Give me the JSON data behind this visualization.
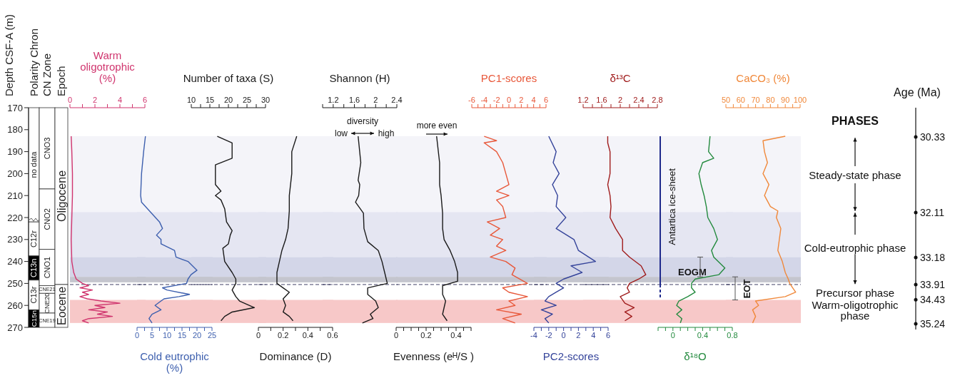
{
  "chart_data": [
    {
      "type": "other",
      "annotations": [
        "Polarity Chron",
        "CN Zone",
        "Epoch",
        "no data",
        "C12r",
        "C13n",
        "C13r",
        "C15n",
        "CNO3",
        "CNO2",
        "CNO1",
        "CNE21",
        "CNE20",
        "CNE19",
        "Oligocene",
        "Eocene"
      ]
    },
    {
      "type": "line",
      "xlabel": "Warm oligotrophic (%)",
      "xlim": [
        0,
        6
      ],
      "xticks": [
        0,
        {
          "value": 1,
          "label": null
        },
        2,
        {
          "value": 3,
          "label": null
        },
        4,
        {
          "value": 5,
          "label": null
        },
        6
      ],
      "ylabel": "Depth CSF-A (m)",
      "ylim": [
        270,
        170
      ],
      "yticks": [
        170,
        180,
        190,
        200,
        210,
        220,
        230,
        240,
        250,
        260,
        270
      ],
      "series": [
        {
          "color": "#d0356e",
          "x": [
            0.1,
            0.15,
            0.2,
            0.2,
            0.15,
            0.1,
            0.15,
            0.3,
            0.5,
            1.0,
            1.5,
            0.8,
            1.8,
            1.0,
            1.5,
            0.8,
            1.4,
            2.5,
            4.0,
            2.0,
            2.8,
            1.5,
            3.0,
            2.2,
            3.4,
            1.5,
            1.0,
            1.5
          ],
          "values": [
            183,
            190,
            200,
            210,
            220,
            230,
            240,
            245,
            248,
            250,
            251,
            252,
            253,
            254,
            255,
            256,
            257,
            258,
            259,
            260,
            261,
            262,
            263,
            264,
            265,
            266,
            267,
            268
          ]
        }
      ],
      "bands": [
        {
          "axis": "y",
          "from": 183,
          "to": 217.5,
          "color": "#f4f4f9"
        },
        {
          "axis": "y",
          "from": 217.5,
          "to": 238,
          "color": "#e5e6f2"
        },
        {
          "axis": "y",
          "from": 238,
          "to": 247,
          "color": "#d3d6e8"
        },
        {
          "axis": "y",
          "from": 247,
          "to": 249.5,
          "color": "#c4c5ce"
        },
        {
          "axis": "y",
          "from": 257.5,
          "to": 268,
          "color": "#f7c8c8"
        }
      ],
      "ref_lines": [
        {
          "axis": "y",
          "value": 250.5,
          "line_style": "dashed",
          "color": "#2b2b55"
        }
      ]
    },
    {
      "type": "line",
      "xlabel": "Cold eutrophic (%)",
      "xlim": [
        0,
        25
      ],
      "xticks": [
        0,
        {
          "value": 2.5,
          "label": null
        },
        5,
        {
          "value": 7.5,
          "label": null
        },
        10,
        {
          "value": 12.5,
          "label": null
        },
        15,
        {
          "value": 17.5,
          "label": null
        },
        20,
        {
          "value": 22.5,
          "label": null
        },
        25
      ],
      "ylim": [
        270,
        170
      ],
      "tick_labels": "x",
      "series": [
        {
          "color": "#3d5fae",
          "x": [
            2.8,
            2.2,
            1.5,
            1.2,
            1.5,
            7.5,
            8.5,
            6.5,
            8,
            8,
            12.5,
            13,
            17,
            20,
            18,
            17,
            16.5,
            8.5,
            10,
            17.5,
            14,
            9,
            8,
            6,
            8,
            5,
            4,
            5
          ],
          "values": [
            183,
            190,
            200,
            210,
            213,
            222,
            225,
            228,
            230,
            232,
            235,
            238,
            240,
            244,
            246,
            248,
            250,
            252,
            253,
            255,
            256,
            257,
            258,
            260,
            262,
            264,
            266,
            268
          ]
        }
      ],
      "bands": [
        {
          "axis": "y",
          "from": 183,
          "to": 217.5,
          "color": "#f4f4f9"
        },
        {
          "axis": "y",
          "from": 217.5,
          "to": 238,
          "color": "#e5e6f2"
        },
        {
          "axis": "y",
          "from": 238,
          "to": 247,
          "color": "#d3d6e8"
        },
        {
          "axis": "y",
          "from": 247,
          "to": 249.5,
          "color": "#c4c5ce"
        },
        {
          "axis": "y",
          "from": 257.5,
          "to": 268,
          "color": "#f7c8c8"
        }
      ],
      "ref_lines": [
        {
          "axis": "y",
          "value": 250.5,
          "line_style": "dashed",
          "color": "#2b2b55"
        }
      ]
    },
    {
      "type": "line",
      "xlabel": "Number of taxa (S)",
      "xlim": [
        10,
        30
      ],
      "xticks": [
        10,
        {
          "value": 12.5,
          "label": null
        },
        15,
        {
          "value": 17.5,
          "label": null
        },
        20,
        {
          "value": 22.5,
          "label": null
        },
        25,
        {
          "value": 27.5,
          "label": null
        },
        30
      ],
      "ylim": [
        270,
        170
      ],
      "tick_labels": "x",
      "series": [
        {
          "color": "#1a1a1a",
          "x": [
            17,
            21,
            21,
            16.5,
            16.5,
            18,
            16.5,
            18,
            19,
            19.5,
            21,
            20.5,
            20,
            18.5,
            19,
            21,
            22,
            22,
            21,
            22,
            23,
            27,
            21,
            19,
            18
          ],
          "values": [
            183,
            186,
            193,
            196,
            205,
            208,
            210,
            212,
            216,
            222,
            226,
            228,
            232,
            234,
            240,
            245,
            248,
            250,
            253,
            256,
            258,
            261,
            263,
            265,
            267
          ]
        }
      ],
      "bands": [
        {
          "axis": "y",
          "from": 183,
          "to": 217.5,
          "color": "#f4f4f9"
        },
        {
          "axis": "y",
          "from": 217.5,
          "to": 238,
          "color": "#e5e6f2"
        },
        {
          "axis": "y",
          "from": 238,
          "to": 247,
          "color": "#d3d6e8"
        },
        {
          "axis": "y",
          "from": 247,
          "to": 249.5,
          "color": "#c4c5ce"
        },
        {
          "axis": "y",
          "from": 257.5,
          "to": 268,
          "color": "#f7c8c8"
        }
      ],
      "ref_lines": [
        {
          "axis": "y",
          "value": 250.5,
          "line_style": "dashed",
          "color": "#2b2b55"
        }
      ]
    },
    {
      "type": "line",
      "xlabel": "Dominance (D)",
      "xlim": [
        0,
        0.6
      ],
      "xticks": [
        0,
        {
          "value": 0.1,
          "label": null
        },
        0.2,
        {
          "value": 0.3,
          "label": null
        },
        0.4,
        {
          "value": 0.5,
          "label": null
        },
        0.6
      ],
      "ylim": [
        270,
        170
      ],
      "tick_labels": "x",
      "series": [
        {
          "color": "#1a1a1a",
          "x": [
            0.31,
            0.27,
            0.27,
            0.25,
            0.25,
            0.24,
            0.22,
            0.19,
            0.17,
            0.15,
            0.15,
            0.15,
            0.2,
            0.25,
            0.2,
            0.22,
            0.2,
            0.25,
            0.28
          ],
          "values": [
            183,
            190,
            200,
            210,
            217,
            225,
            230,
            235,
            240,
            245,
            248,
            250,
            252,
            254,
            257,
            260,
            263,
            265,
            267
          ]
        }
      ],
      "bands": [
        {
          "axis": "y",
          "from": 183,
          "to": 217.5,
          "color": "#f4f4f9"
        },
        {
          "axis": "y",
          "from": 217.5,
          "to": 238,
          "color": "#e5e6f2"
        },
        {
          "axis": "y",
          "from": 238,
          "to": 247,
          "color": "#d3d6e8"
        },
        {
          "axis": "y",
          "from": 247,
          "to": 249.5,
          "color": "#c4c5ce"
        },
        {
          "axis": "y",
          "from": 257.5,
          "to": 268,
          "color": "#f7c8c8"
        }
      ],
      "ref_lines": [
        {
          "axis": "y",
          "value": 250.5,
          "line_style": "dashed",
          "color": "#2b2b55"
        }
      ]
    },
    {
      "type": "line",
      "xlabel": "Shannon (H)",
      "xlim": [
        1,
        2.4
      ],
      "xticks": [
        {
          "value": 1,
          "label": null
        },
        1.2,
        {
          "value": 1.4,
          "label": null
        },
        1.6,
        {
          "value": 1.8,
          "label": null
        },
        2,
        {
          "value": 2.2,
          "label": null
        },
        2.4
      ],
      "ylim": [
        270,
        170
      ],
      "tick_labels": "x",
      "annotations": [
        "diversity",
        "low",
        "high"
      ],
      "series": [
        {
          "color": "#1a1a1a",
          "x": [
            1.67,
            1.72,
            1.67,
            1.7,
            1.68,
            1.62,
            1.77,
            1.78,
            1.85,
            2.05,
            2.12,
            2.17,
            2.2,
            2.22,
            1.85,
            1.85,
            2.0,
            2.05,
            1.9,
            1.95,
            1.75
          ],
          "values": [
            183,
            195,
            203,
            205,
            210,
            213,
            218,
            225,
            231,
            235,
            240,
            245,
            248,
            250,
            252,
            255,
            258,
            261,
            264,
            266,
            268
          ]
        }
      ],
      "bands": [
        {
          "axis": "y",
          "from": 183,
          "to": 217.5,
          "color": "#f4f4f9"
        },
        {
          "axis": "y",
          "from": 217.5,
          "to": 238,
          "color": "#e5e6f2"
        },
        {
          "axis": "y",
          "from": 238,
          "to": 247,
          "color": "#d3d6e8"
        },
        {
          "axis": "y",
          "from": 247,
          "to": 249.5,
          "color": "#c4c5ce"
        },
        {
          "axis": "y",
          "from": 257.5,
          "to": 268,
          "color": "#f7c8c8"
        }
      ],
      "ref_lines": [
        {
          "axis": "y",
          "value": 250.5,
          "line_style": "dashed",
          "color": "#2b2b55"
        }
      ]
    },
    {
      "type": "line",
      "xlabel": "Evenness (eᴴ/S )",
      "xlim": [
        0,
        0.5
      ],
      "xticks": [
        0,
        {
          "value": 0.05,
          "label": null
        },
        {
          "value": 0.1,
          "label": null
        },
        {
          "value": 0.15,
          "label": null
        },
        0.2,
        {
          "value": 0.25,
          "label": null
        },
        {
          "value": 0.3,
          "label": null
        },
        {
          "value": 0.35,
          "label": null
        },
        0.4,
        {
          "value": 0.45,
          "label": null
        },
        {
          "value": 0.5,
          "label": null
        }
      ],
      "ylim": [
        270,
        170
      ],
      "tick_labels": "x",
      "annotations": [
        "more even"
      ],
      "series": [
        {
          "color": "#1a1a1a",
          "x": [
            0.27,
            0.29,
            0.29,
            0.3,
            0.31,
            0.31,
            0.32,
            0.36,
            0.39,
            0.41,
            0.41,
            0.31,
            0.31,
            0.33,
            0.32,
            0.31,
            0.34
          ],
          "values": [
            183,
            195,
            205,
            210,
            218,
            225,
            230,
            235,
            240,
            245,
            249,
            251,
            255,
            258,
            261,
            264,
            267
          ]
        }
      ],
      "bands": [
        {
          "axis": "y",
          "from": 183,
          "to": 217.5,
          "color": "#f4f4f9"
        },
        {
          "axis": "y",
          "from": 217.5,
          "to": 238,
          "color": "#e5e6f2"
        },
        {
          "axis": "y",
          "from": 238,
          "to": 247,
          "color": "#d3d6e8"
        },
        {
          "axis": "y",
          "from": 247,
          "to": 249.5,
          "color": "#c4c5ce"
        },
        {
          "axis": "y",
          "from": 257.5,
          "to": 268,
          "color": "#f7c8c8"
        }
      ],
      "ref_lines": [
        {
          "axis": "y",
          "value": 250.5,
          "line_style": "dashed",
          "color": "#2b2b55"
        }
      ]
    },
    {
      "type": "line",
      "xlabel": "PC1-scores",
      "xlim": [
        -6,
        6
      ],
      "xticks": [
        -6,
        {
          "value": -5,
          "label": null
        },
        -4,
        {
          "value": -3,
          "label": null
        },
        -2,
        {
          "value": -1,
          "label": null
        },
        0,
        {
          "value": 1,
          "label": null
        },
        2,
        {
          "value": 3,
          "label": null
        },
        4,
        {
          "value": 5,
          "label": null
        },
        6
      ],
      "ylim": [
        270,
        170
      ],
      "tick_labels": "x",
      "series": [
        {
          "color": "#e8583a",
          "x": [
            -4,
            -2,
            -4,
            -2,
            -1,
            -0.5,
            0,
            -2,
            0,
            -2,
            -1,
            -0.5,
            -3.5,
            -1.5,
            -3,
            -1,
            -2,
            -0.5,
            -3,
            -0.5,
            1,
            0.5,
            3,
            -1,
            0,
            3,
            0,
            1,
            -2,
            2,
            -1,
            1
          ],
          "values": [
            183,
            185,
            186,
            190,
            195,
            200,
            205,
            208,
            210,
            212,
            215,
            220,
            222,
            225,
            228,
            230,
            233,
            235,
            238,
            240,
            243,
            246,
            250,
            252,
            254,
            256,
            258,
            260,
            262,
            264,
            266,
            268
          ]
        }
      ],
      "bands": [
        {
          "axis": "y",
          "from": 183,
          "to": 217.5,
          "color": "#f4f4f9"
        },
        {
          "axis": "y",
          "from": 217.5,
          "to": 238,
          "color": "#e5e6f2"
        },
        {
          "axis": "y",
          "from": 238,
          "to": 247,
          "color": "#d3d6e8"
        },
        {
          "axis": "y",
          "from": 247,
          "to": 249.5,
          "color": "#c4c5ce"
        },
        {
          "axis": "y",
          "from": 257.5,
          "to": 268,
          "color": "#f7c8c8"
        }
      ],
      "ref_lines": [
        {
          "axis": "y",
          "value": 250.5,
          "line_style": "dashed",
          "color": "#2b2b55"
        }
      ]
    },
    {
      "type": "line",
      "xlabel": "PC2-scores",
      "xlim": [
        -4,
        6
      ],
      "xticks": [
        -4,
        {
          "value": -3,
          "label": null
        },
        -2,
        {
          "value": -1,
          "label": null
        },
        0,
        {
          "value": 1,
          "label": null
        },
        2,
        {
          "value": 3,
          "label": null
        },
        4,
        {
          "value": 5,
          "label": null
        },
        6
      ],
      "ylim": [
        270,
        170
      ],
      "tick_labels": "x",
      "series": [
        {
          "color": "#34439a",
          "x": [
            -2,
            -1,
            -1.4,
            -0.6,
            -1.5,
            -0.8,
            -1,
            0.3,
            -1,
            1.4,
            2,
            4.3,
            1,
            2.5,
            0,
            -1,
            0,
            -1,
            -2,
            -2.5,
            -1,
            -3,
            -1.5,
            -2.5,
            -2
          ],
          "values": [
            183,
            190,
            195,
            200,
            205,
            210,
            215,
            220,
            225,
            230,
            235,
            240,
            242,
            245,
            248,
            250,
            252,
            254,
            256,
            258,
            260,
            262,
            264,
            266,
            268
          ]
        }
      ],
      "bands": [
        {
          "axis": "y",
          "from": 183,
          "to": 217.5,
          "color": "#f4f4f9"
        },
        {
          "axis": "y",
          "from": 217.5,
          "to": 238,
          "color": "#e5e6f2"
        },
        {
          "axis": "y",
          "from": 238,
          "to": 247,
          "color": "#d3d6e8"
        },
        {
          "axis": "y",
          "from": 247,
          "to": 249.5,
          "color": "#c4c5ce"
        },
        {
          "axis": "y",
          "from": 257.5,
          "to": 268,
          "color": "#f7c8c8"
        }
      ],
      "ref_lines": [
        {
          "axis": "y",
          "value": 250.5,
          "line_style": "dashed",
          "color": "#2b2b55"
        }
      ]
    },
    {
      "type": "line",
      "xlabel": "δ¹³C",
      "xlim": [
        1.2,
        2.8
      ],
      "xticks": [
        1.2,
        {
          "value": 1.4,
          "label": null
        },
        1.6,
        {
          "value": 1.8,
          "label": null
        },
        2,
        {
          "value": 2.2,
          "label": null
        },
        2.4,
        {
          "value": 2.6,
          "label": null
        },
        2.8
      ],
      "ylim": [
        270,
        170
      ],
      "tick_labels": "x",
      "series": [
        {
          "color": "#a01c1c",
          "x": [
            1.73,
            1.73,
            1.78,
            1.78,
            1.73,
            1.78,
            1.8,
            1.78,
            1.9,
            2.05,
            2.05,
            2.2,
            2.45,
            2.55,
            2.4,
            2.2,
            2.15,
            2.2,
            2.0,
            2.1,
            2.3,
            2.1,
            2.25,
            2.1
          ],
          "values": [
            183,
            186,
            190,
            200,
            205,
            210,
            215,
            220,
            225,
            230,
            235,
            238,
            242,
            246,
            248,
            250,
            252,
            254,
            256,
            259,
            261,
            263,
            265,
            267
          ]
        }
      ],
      "bands": [
        {
          "axis": "y",
          "from": 183,
          "to": 217.5,
          "color": "#f4f4f9"
        },
        {
          "axis": "y",
          "from": 217.5,
          "to": 238,
          "color": "#e5e6f2"
        },
        {
          "axis": "y",
          "from": 238,
          "to": 247,
          "color": "#d3d6e8"
        },
        {
          "axis": "y",
          "from": 247,
          "to": 249.5,
          "color": "#c4c5ce"
        },
        {
          "axis": "y",
          "from": 257.5,
          "to": 268,
          "color": "#f7c8c8"
        }
      ],
      "ref_lines": [
        {
          "axis": "y",
          "value": 250.5,
          "line_style": "dashed",
          "color": "#2b2b55"
        }
      ]
    },
    {
      "type": "line",
      "xlabel": "δ¹⁸O",
      "xlim": [
        -0.2,
        0.8
      ],
      "xticks": [
        {
          "value": -0.2,
          "label": null
        },
        {
          "value": -0.1,
          "label": null
        },
        0,
        {
          "value": 0.1,
          "label": null
        },
        {
          "value": 0.2,
          "label": null
        },
        {
          "value": 0.3,
          "label": null
        },
        0.4,
        {
          "value": 0.5,
          "label": null
        },
        {
          "value": 0.6,
          "label": null
        },
        {
          "value": 0.7,
          "label": null
        },
        0.8
      ],
      "ylim": [
        270,
        170
      ],
      "tick_labels": "x",
      "annotations": [
        "Antartica ice-sheet",
        "EOGM",
        "EOT"
      ],
      "series": [
        {
          "color": "#238a3e",
          "x": [
            0.5,
            0.48,
            0.55,
            0.4,
            0.35,
            0.38,
            0.42,
            0.45,
            0.47,
            0.55,
            0.6,
            0.52,
            0.55,
            0.7,
            0.62,
            0.3,
            0.25,
            0.25,
            0.3,
            0.2,
            0.08,
            0.05,
            0.12,
            0.05,
            0.12,
            0.1
          ],
          "values": [
            183,
            190,
            193,
            195,
            200,
            205,
            210,
            215,
            220,
            225,
            230,
            235,
            238,
            243,
            246,
            248,
            250,
            252,
            254,
            256,
            258,
            260,
            262,
            264,
            266,
            268
          ]
        }
      ],
      "bands": [
        {
          "axis": "y",
          "from": 183,
          "to": 217.5,
          "color": "#f4f4f9"
        },
        {
          "axis": "y",
          "from": 217.5,
          "to": 238,
          "color": "#e5e6f2"
        },
        {
          "axis": "y",
          "from": 238,
          "to": 247,
          "color": "#d3d6e8"
        },
        {
          "axis": "y",
          "from": 247,
          "to": 249.5,
          "color": "#c4c5ce"
        },
        {
          "axis": "y",
          "from": 257.5,
          "to": 268,
          "color": "#f7c8c8"
        }
      ],
      "ref_lines": [
        {
          "axis": "y",
          "value": 250.5,
          "line_style": "dashed",
          "color": "#2b2b55"
        }
      ]
    },
    {
      "type": "line",
      "xlabel": "CaCO₃ (%)",
      "xlim": [
        50,
        100
      ],
      "xticks": [
        50,
        {
          "value": 55,
          "label": null
        },
        60,
        {
          "value": 65,
          "label": null
        },
        70,
        {
          "value": 75,
          "label": null
        },
        80,
        {
          "value": 85,
          "label": null
        },
        90,
        {
          "value": 95,
          "label": null
        },
        100
      ],
      "ylim": [
        270,
        170
      ],
      "tick_labels": "x",
      "series": [
        {
          "color": "#f0883a",
          "x": [
            90,
            75,
            76,
            78,
            75,
            79,
            76,
            80,
            85,
            84,
            87,
            86,
            85,
            88,
            90,
            92,
            93,
            95,
            97,
            90,
            70,
            72,
            68,
            70,
            68
          ],
          "values": [
            183,
            185,
            190,
            195,
            200,
            205,
            210,
            215,
            217,
            220,
            225,
            230,
            235,
            240,
            245,
            248,
            250,
            252,
            254,
            256,
            258,
            260,
            262,
            265,
            268
          ]
        }
      ],
      "bands": [
        {
          "axis": "y",
          "from": 183,
          "to": 217.5,
          "color": "#f4f4f9"
        },
        {
          "axis": "y",
          "from": 217.5,
          "to": 238,
          "color": "#e5e6f2"
        },
        {
          "axis": "y",
          "from": 238,
          "to": 247,
          "color": "#d3d6e8"
        },
        {
          "axis": "y",
          "from": 247,
          "to": 249.5,
          "color": "#c4c5ce"
        },
        {
          "axis": "y",
          "from": 257.5,
          "to": 268,
          "color": "#f7c8c8"
        }
      ],
      "ref_lines": [
        {
          "axis": "y",
          "value": 250.5,
          "line_style": "dashed",
          "color": "#2b2b55"
        }
      ]
    },
    {
      "type": "other",
      "title": "PHASES",
      "annotations": [
        "Age (Ma)",
        "30.33",
        "32.11",
        "33.18",
        "33.91",
        "34.43",
        "35.24",
        "Steady-state phase",
        "Cold-eutrophic phase",
        "Precursor phase",
        "Warm-oligotrophic phase"
      ]
    }
  ]
}
